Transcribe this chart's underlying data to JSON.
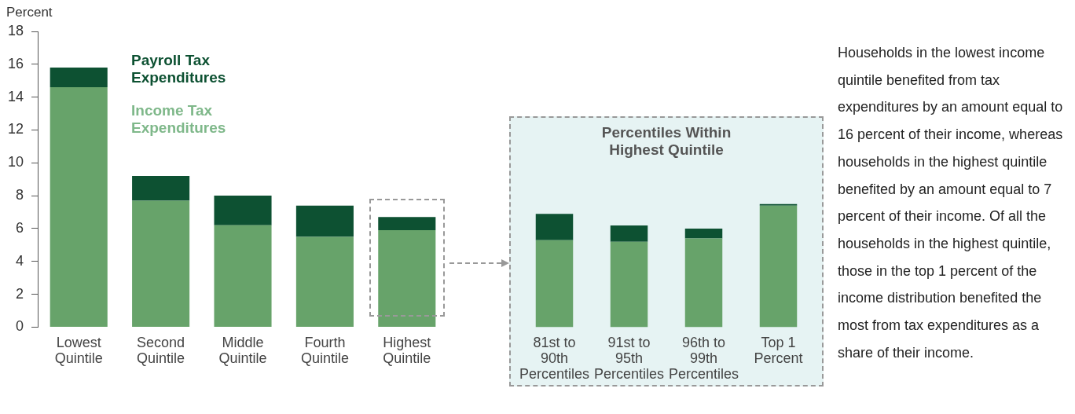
{
  "chart_data": [
    {
      "type": "bar",
      "stacked": true,
      "ylabel": "Percent",
      "categories": [
        "Lowest Quintile",
        "Second Quintile",
        "Middle Quintile",
        "Fourth Quintile",
        "Highest Quintile"
      ],
      "ylim": [
        0,
        18
      ],
      "yticks": [
        0,
        2,
        4,
        6,
        8,
        10,
        12,
        14,
        16,
        18
      ],
      "grid": false,
      "legend": false,
      "series": [
        {
          "name": "Income Tax Expenditures",
          "color": "#67a36a",
          "values": [
            14.6,
            7.7,
            6.2,
            5.5,
            5.9
          ]
        },
        {
          "name": "Payroll Tax Expenditures",
          "color": "#0d5132",
          "values": [
            1.2,
            1.5,
            1.8,
            1.9,
            0.8
          ]
        }
      ]
    },
    {
      "type": "bar",
      "stacked": true,
      "title": "Percentiles Within Highest Quintile",
      "categories": [
        "81st to 90th Percentiles",
        "91st to 95th Percentiles",
        "96th to 99th Percentiles",
        "Top 1 Percent"
      ],
      "ylim": [
        0,
        18
      ],
      "tick_labels": "x",
      "grid": false,
      "legend": false,
      "series": [
        {
          "color": "#67a36a",
          "values": [
            5.3,
            5.2,
            5.4,
            7.4
          ]
        },
        {
          "color": "#0d5132",
          "values": [
            1.6,
            1.0,
            0.6,
            0.1
          ]
        }
      ]
    },
    {
      "type": "other",
      "annotations": [
        "Households in the lowest income quintile benefited from tax expenditures by an amount equal to 16 percent of their income, whereas households in the highest quintile benefited by an amount equal to 7 percent of their income. Of all the households in the highest quintile, those in the top 1 percent of the income distribution benefited the most from tax expenditures as a share of their income."
      ]
    }
  ]
}
